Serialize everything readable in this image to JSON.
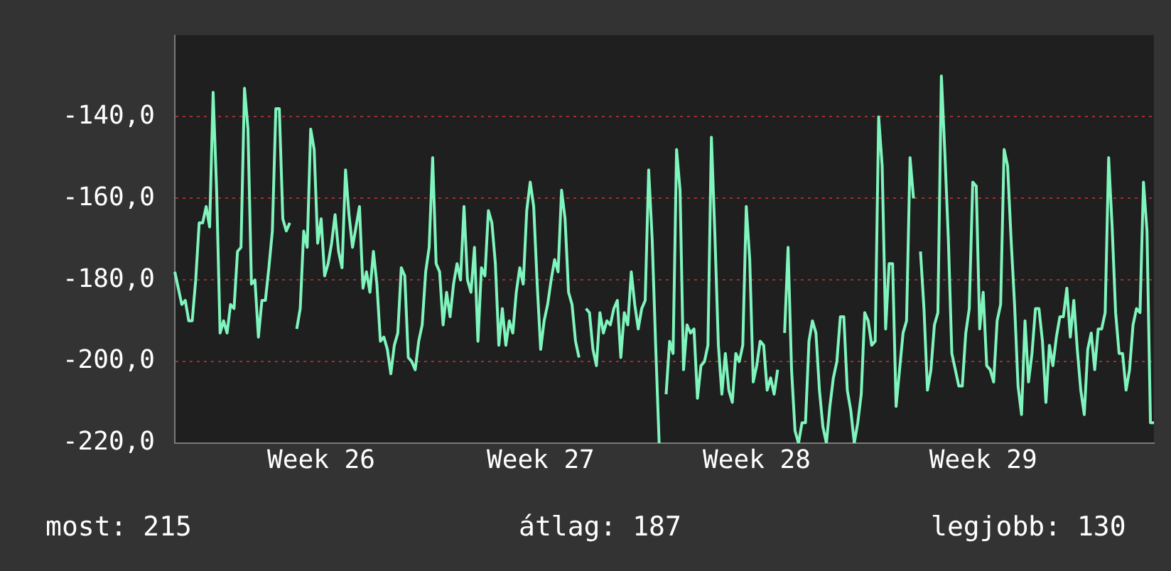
{
  "chart_data": {
    "type": "line",
    "categories": [
      null,
      null,
      null,
      null,
      null,
      null,
      null,
      null,
      null,
      null,
      null,
      null,
      null,
      null,
      null,
      null,
      null,
      null,
      null,
      null,
      null,
      null,
      null,
      null,
      null,
      null,
      null,
      null,
      null,
      null,
      null,
      null,
      null,
      null,
      null,
      null,
      null,
      null,
      null,
      null,
      null,
      null,
      "Week 26",
      null,
      null,
      null,
      null,
      null,
      null,
      null,
      null,
      null,
      null,
      null,
      null,
      null,
      null,
      null,
      null,
      null,
      null,
      null,
      null,
      null,
      null,
      null,
      null,
      null,
      null,
      null,
      null,
      null,
      null,
      null,
      null,
      null,
      null,
      null,
      null,
      null,
      null,
      null,
      null,
      null,
      null,
      null,
      null,
      null,
      null,
      null,
      null,
      null,
      null,
      null,
      null,
      null,
      null,
      null,
      null,
      null,
      null,
      null,
      null,
      null,
      null,
      "Week 27",
      null,
      null,
      null,
      null,
      null,
      null,
      null,
      null,
      null,
      null,
      null,
      null,
      null,
      null,
      null,
      null,
      null,
      null,
      null,
      null,
      null,
      null,
      null,
      null,
      null,
      null,
      null,
      null,
      null,
      null,
      null,
      null,
      null,
      null,
      null,
      null,
      null,
      null,
      null,
      null,
      null,
      null,
      null,
      null,
      null,
      null,
      null,
      null,
      null,
      null,
      null,
      null,
      null,
      null,
      null,
      null,
      null,
      null,
      null,
      null,
      null,
      "Week 28",
      null,
      null,
      null,
      null,
      null,
      null,
      null,
      null,
      null,
      null,
      null,
      null,
      null,
      null,
      null,
      null,
      null,
      null,
      null,
      null,
      null,
      null,
      null,
      null,
      null,
      null,
      null,
      null,
      null,
      null,
      null,
      null,
      null,
      null,
      null,
      null,
      null,
      null,
      null,
      null,
      null,
      null,
      null,
      null,
      null,
      null,
      null,
      null,
      null,
      null,
      null,
      null,
      null,
      null,
      null,
      null,
      null,
      null,
      null,
      null,
      null,
      null,
      null,
      null,
      "Week 29",
      null,
      null,
      null,
      null,
      null,
      null,
      null,
      null,
      null,
      null,
      null,
      null,
      null,
      null,
      null,
      null,
      null,
      null,
      null,
      null,
      null,
      null,
      null,
      null,
      null,
      null,
      null,
      null,
      null,
      null,
      null,
      null,
      null,
      null,
      null,
      null,
      null,
      null,
      null,
      null,
      null,
      null,
      null,
      null,
      null,
      null,
      null,
      null,
      null
    ],
    "series": [
      {
        "color": "#7ff5bd",
        "values": [
          -178,
          -182,
          -186,
          -185,
          -190,
          -190,
          -180,
          -166,
          -166,
          -162,
          -167,
          -134,
          -158,
          -193,
          -190,
          -193,
          -186,
          -187,
          -173,
          -172,
          -133,
          -143,
          -181,
          -180,
          -194,
          -185,
          -185,
          -177,
          -168,
          -138,
          -138,
          -165,
          -168,
          -166,
          null,
          -192,
          -187,
          -168,
          -172,
          -143,
          -148,
          -171,
          -165,
          -179,
          -176,
          -171,
          -164,
          -173,
          -177,
          -153,
          -164,
          -172,
          -167,
          -162,
          -182,
          -178,
          -183,
          -173,
          -181,
          -195,
          -194,
          -197,
          -203,
          -196,
          -193,
          -177,
          -179,
          -199,
          -200,
          -202,
          -195,
          -191,
          -178,
          -172,
          -150,
          -176,
          -178,
          -191,
          -183,
          -189,
          -181,
          -176,
          -180,
          -162,
          -180,
          -183,
          -172,
          -195,
          -177,
          -179,
          -163,
          -166,
          -176,
          -196,
          -187,
          -196,
          -190,
          -193,
          -183,
          -177,
          -181,
          -163,
          -156,
          -162,
          -181,
          -197,
          -190,
          -186,
          -180,
          -175,
          -178,
          -158,
          -165,
          -183,
          -186,
          -195,
          -199,
          null,
          -187,
          -188,
          -197,
          -201,
          -188,
          -193,
          -190,
          -191,
          -187,
          -185,
          -199,
          -188,
          -191,
          -178,
          -186,
          -192,
          -187,
          -185,
          -153,
          -170,
          -196,
          -220,
          null,
          -208,
          -195,
          -198,
          -148,
          -158,
          -202,
          -191,
          -193,
          -192,
          -209,
          -201,
          -200,
          -196,
          -145,
          -169,
          -196,
          -208,
          -198,
          -207,
          -210,
          -198,
          -200,
          -196,
          -162,
          -175,
          -205,
          -201,
          -195,
          -196,
          -207,
          -204,
          -208,
          -202,
          null,
          -193,
          -172,
          -202,
          -217,
          -220,
          -215,
          -215,
          -195,
          -190,
          -193,
          -207,
          -216,
          -220,
          -211,
          -204,
          -200,
          -189,
          -189,
          -207,
          -212,
          -220,
          -215,
          -208,
          -188,
          -190,
          -196,
          -195,
          -140,
          -152,
          -192,
          -176,
          -176,
          -211,
          -202,
          -193,
          -190,
          -150,
          -160,
          null,
          -173,
          -187,
          -207,
          -202,
          -191,
          -188,
          -130,
          -149,
          -170,
          -198,
          -202,
          -206,
          -206,
          -193,
          -187,
          -156,
          -157,
          -192,
          -183,
          -201,
          -202,
          -205,
          -190,
          -186,
          -148,
          -152,
          -170,
          -186,
          -206,
          -213,
          -190,
          -205,
          -198,
          -187,
          -187,
          -195,
          -210,
          -196,
          -201,
          -194,
          -189,
          -189,
          -182,
          -194,
          -185,
          -197,
          -207,
          -213,
          -197,
          -193,
          -202,
          -192,
          -192,
          -188,
          -150,
          -167,
          -188,
          -198,
          -198,
          -207,
          -202,
          -191,
          -187,
          -188,
          -156,
          -168,
          -215,
          -215
        ]
      }
    ],
    "ylim": [
      -220,
      -120
    ],
    "yticks": [
      {
        "value": -220,
        "label": "-220,0"
      },
      {
        "value": -200,
        "label": "-200,0"
      },
      {
        "value": -180,
        "label": "-180,0"
      },
      {
        "value": -160,
        "label": "-160,0"
      },
      {
        "value": -140,
        "label": "-140,0"
      }
    ],
    "grid": "y",
    "legend": false,
    "marker": "none",
    "line_style": "solid",
    "annotations": [
      "most: 215",
      "átlag: 187",
      "legjobb: 130"
    ]
  }
}
